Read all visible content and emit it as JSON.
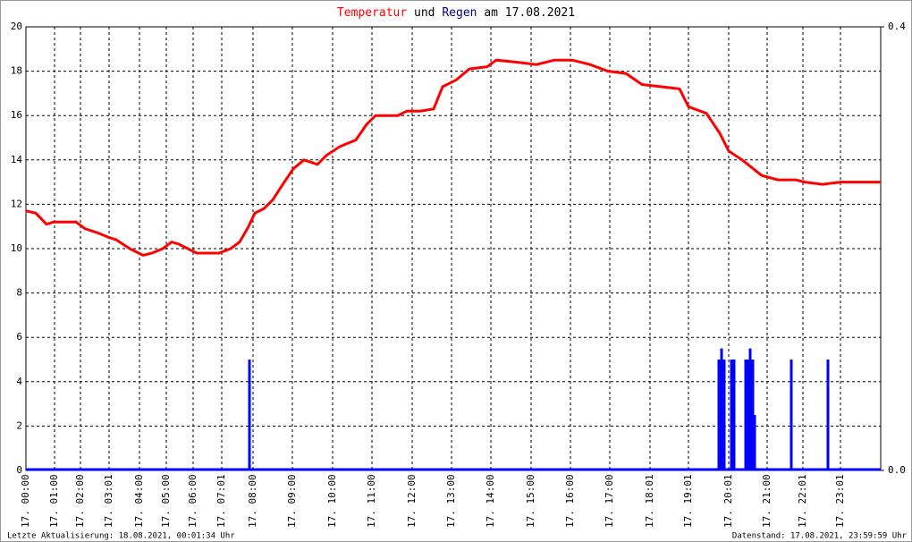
{
  "chart_data": {
    "type": "line",
    "title_joiner": "und",
    "title_suffix": "am 17.08.2021",
    "footer_left": "Letzte Aktualisierung: 18.08.2021, 00:01:34 Uhr",
    "footer_right": "Datenstand: 17.08.2021, 23:59:59 Uhr",
    "xlim": [
      0,
      956
    ],
    "xticks": [
      {
        "value": 0,
        "label": "17. 00:00"
      },
      {
        "value": 32,
        "label": "17. 01:00"
      },
      {
        "value": 61,
        "label": "17. 02:00"
      },
      {
        "value": 93,
        "label": "17. 03:01"
      },
      {
        "value": 127,
        "label": "17. 04:00"
      },
      {
        "value": 157,
        "label": "17. 05:00"
      },
      {
        "value": 187,
        "label": "17. 06:00"
      },
      {
        "value": 219,
        "label": "17. 07:01"
      },
      {
        "value": 254,
        "label": "17. 08:00"
      },
      {
        "value": 298,
        "label": "17. 09:00"
      },
      {
        "value": 343,
        "label": "17. 10:00"
      },
      {
        "value": 387,
        "label": "17. 11:00"
      },
      {
        "value": 432,
        "label": "17. 12:00"
      },
      {
        "value": 476,
        "label": "17. 13:00"
      },
      {
        "value": 520,
        "label": "17. 14:00"
      },
      {
        "value": 565,
        "label": "17. 15:00"
      },
      {
        "value": 609,
        "label": "17. 16:00"
      },
      {
        "value": 653,
        "label": "17. 17:00"
      },
      {
        "value": 698,
        "label": "17. 18:01"
      },
      {
        "value": 741,
        "label": "17. 19:01"
      },
      {
        "value": 786,
        "label": "17. 20:01"
      },
      {
        "value": 829,
        "label": "17. 21:00"
      },
      {
        "value": 869,
        "label": "17. 22:01"
      },
      {
        "value": 911,
        "label": "17. 23:01"
      }
    ],
    "ylim": [
      0,
      20
    ],
    "yticks": [
      0,
      2,
      4,
      6,
      8,
      10,
      12,
      14,
      16,
      18,
      20
    ],
    "y2lim": [
      0,
      0.4
    ],
    "y2ticks": [
      {
        "value": 0,
        "label": "0.0"
      },
      0.4
    ],
    "grid": true,
    "series": [
      {
        "name": "Temperatur",
        "color": "#ff0000",
        "type": "line",
        "x": [
          0,
          11,
          23,
          31,
          56,
          66,
          81,
          93,
          101,
          116,
          131,
          141,
          153,
          163,
          171,
          191,
          216,
          229,
          239,
          249,
          256,
          266,
          276,
          289,
          299,
          311,
          326,
          336,
          351,
          369,
          381,
          391,
          416,
          426,
          441,
          456,
          466,
          481,
          496,
          516,
          526,
          551,
          571,
          591,
          611,
          631,
          651,
          671,
          689,
          711,
          731,
          741,
          761,
          776,
          786,
          801,
          823,
          841,
          861,
          871,
          891,
          911,
          956
        ],
        "values": [
          11.7,
          11.6,
          11.1,
          11.2,
          11.2,
          10.9,
          10.7,
          10.5,
          10.4,
          10.0,
          9.7,
          9.8,
          10.0,
          10.3,
          10.2,
          9.8,
          9.8,
          10.0,
          10.3,
          11.0,
          11.6,
          11.8,
          12.2,
          13.0,
          13.6,
          14.0,
          13.8,
          14.2,
          14.6,
          14.9,
          15.6,
          16.0,
          16.0,
          16.2,
          16.2,
          16.3,
          17.3,
          17.6,
          18.1,
          18.2,
          18.5,
          18.4,
          18.3,
          18.5,
          18.5,
          18.3,
          18.0,
          17.9,
          17.4,
          17.3,
          17.2,
          16.4,
          16.1,
          15.2,
          14.4,
          14.0,
          13.3,
          13.1,
          13.1,
          13.0,
          12.9,
          13.0,
          13.0
        ]
      },
      {
        "name": "Regen",
        "color": "#0000ff",
        "type": "bar",
        "axis": "y2",
        "x": [
          250,
          775,
          778,
          781,
          789,
          792,
          805,
          808,
          810,
          813,
          815,
          856,
          897
        ],
        "values": [
          0.1,
          0.1,
          0.11,
          0.1,
          0.1,
          0.1,
          0.1,
          0.1,
          0.11,
          0.1,
          0.05,
          0.1,
          0.1
        ]
      }
    ]
  }
}
